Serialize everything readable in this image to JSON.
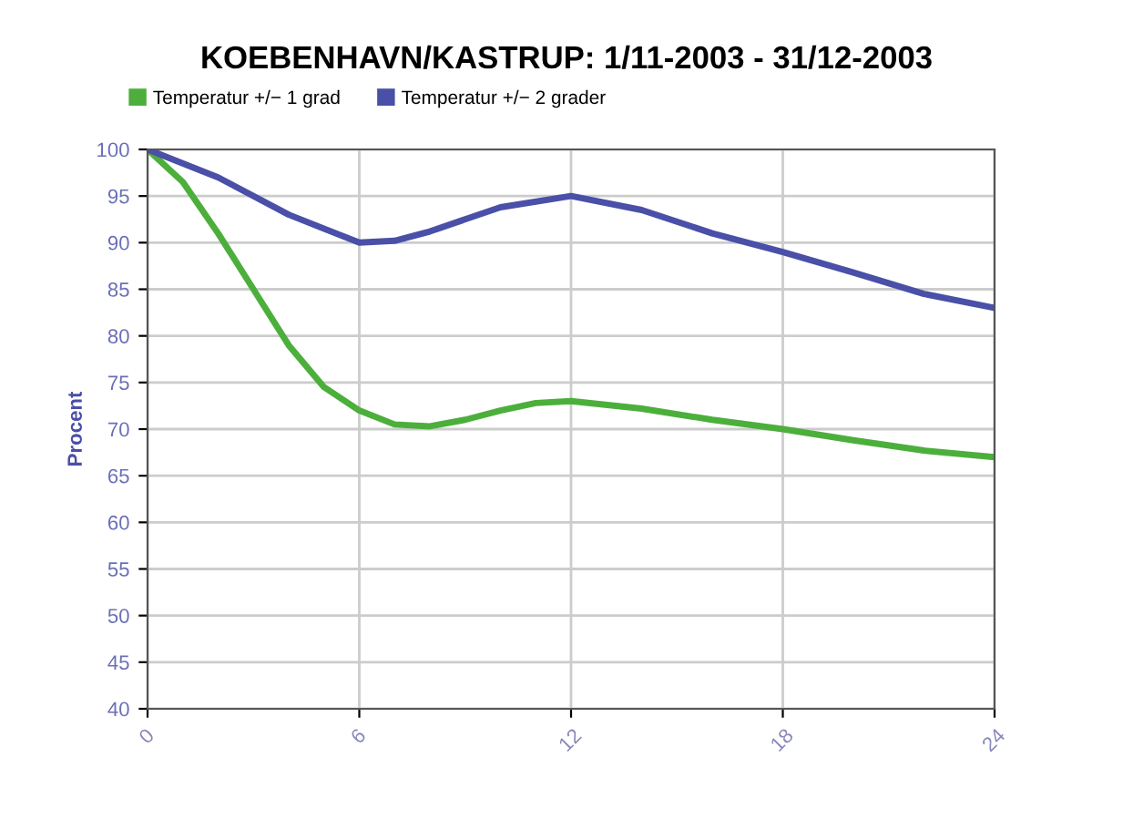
{
  "chart_data": {
    "type": "line",
    "title": "KOEBENHAVN/KASTRUP: 1/11-2003 - 31/12-2003",
    "ylabel": "Procent",
    "xlim": [
      0,
      24
    ],
    "xticks": [
      0,
      6,
      12,
      18,
      24
    ],
    "ylim": [
      40,
      100
    ],
    "yticks": [
      40,
      45,
      50,
      55,
      60,
      65,
      70,
      75,
      80,
      85,
      90,
      95,
      100
    ],
    "grid": true,
    "legend": "top left",
    "marker": "none",
    "line_style": "solid",
    "series": [
      {
        "name": "Temperatur +/− 1 grad",
        "color": "#4caf3c",
        "x": [
          0,
          1,
          2,
          3,
          4,
          5,
          6,
          7,
          8,
          9,
          10,
          11,
          12,
          14,
          16,
          18,
          20,
          22,
          24
        ],
        "values": [
          100,
          96.5,
          91,
          85,
          79,
          74.5,
          72,
          70.5,
          70.3,
          71,
          72,
          72.8,
          73,
          72.2,
          71,
          70,
          68.8,
          67.7,
          67
        ]
      },
      {
        "name": "Temperatur +/− 2 grader",
        "color": "#4a4fa8",
        "x": [
          0,
          2,
          4,
          6,
          7,
          8,
          10,
          12,
          14,
          16,
          18,
          20,
          22,
          24
        ],
        "values": [
          100,
          97,
          93,
          90,
          90.2,
          91.2,
          93.8,
          95,
          93.5,
          91,
          89,
          86.8,
          84.5,
          83
        ]
      }
    ]
  }
}
